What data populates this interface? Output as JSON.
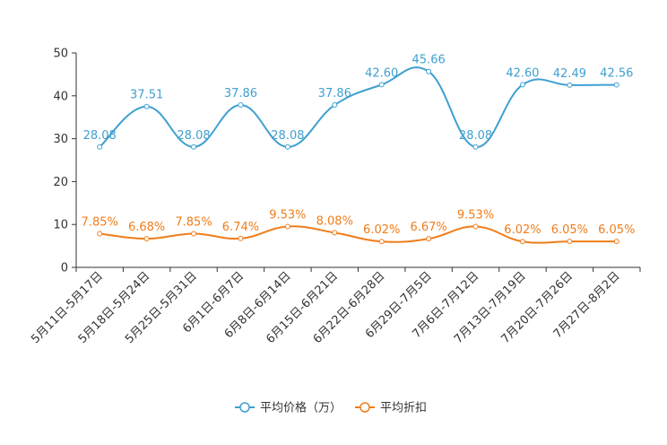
{
  "chart_data": {
    "type": "line",
    "categories": [
      "5月11日-5月17日",
      "5月18日-5月24日",
      "5月25日-5月31日",
      "6月1日-6月7日",
      "6月8日-6月14日",
      "6月15日-6月21日",
      "6月22日-6月28日",
      "6月29日-7月5日",
      "7月6日-7月12日",
      "7月13日-7月19日",
      "7月20日-7月26日",
      "7月27日-8月2日"
    ],
    "ylim": [
      0,
      50
    ],
    "yticks": [
      0,
      10,
      20,
      30,
      40,
      50
    ],
    "series": [
      {
        "name": "平均价格（万）",
        "color": "#3fa0d0",
        "values": [
          28.08,
          37.51,
          28.08,
          37.86,
          28.08,
          37.86,
          42.6,
          45.66,
          28.08,
          42.6,
          42.49,
          42.56
        ],
        "labels": [
          "28.08",
          "37.51",
          "28.08",
          "37.86",
          "28.08",
          "37.86",
          "42.60",
          "45.66",
          "28.08",
          "42.60",
          "42.49",
          "42.56"
        ]
      },
      {
        "name": "平均折扣",
        "color": "#f07d1a",
        "values": [
          7.85,
          6.68,
          7.85,
          6.74,
          9.53,
          8.08,
          6.02,
          6.67,
          9.53,
          6.02,
          6.05,
          6.05
        ],
        "labels": [
          "7.85%",
          "6.68%",
          "7.85%",
          "6.74%",
          "9.53%",
          "8.08%",
          "6.02%",
          "6.67%",
          "9.53%",
          "6.02%",
          "6.05%",
          "6.05%"
        ]
      }
    ],
    "legend": "bottom-center"
  }
}
